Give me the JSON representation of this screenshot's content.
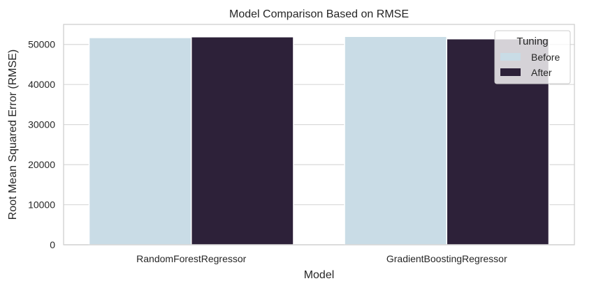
{
  "chart_data": {
    "type": "bar",
    "title": "Model Comparison Based on RMSE",
    "xlabel": "Model",
    "ylabel": "Root Mean Squared Error (RMSE)",
    "categories": [
      "RandomForestRegressor",
      "GradientBoostingRegressor"
    ],
    "series": [
      {
        "name": "Before",
        "values": [
          51700,
          52000
        ],
        "color": "#c9dce6"
      },
      {
        "name": "After",
        "values": [
          51900,
          51400
        ],
        "color": "#2d2139"
      }
    ],
    "ylim": [
      0,
      55000
    ],
    "yticks": [
      0,
      10000,
      20000,
      30000,
      40000,
      50000
    ],
    "grid": true,
    "legend": {
      "title": "Tuning",
      "placement": "top-right"
    }
  }
}
